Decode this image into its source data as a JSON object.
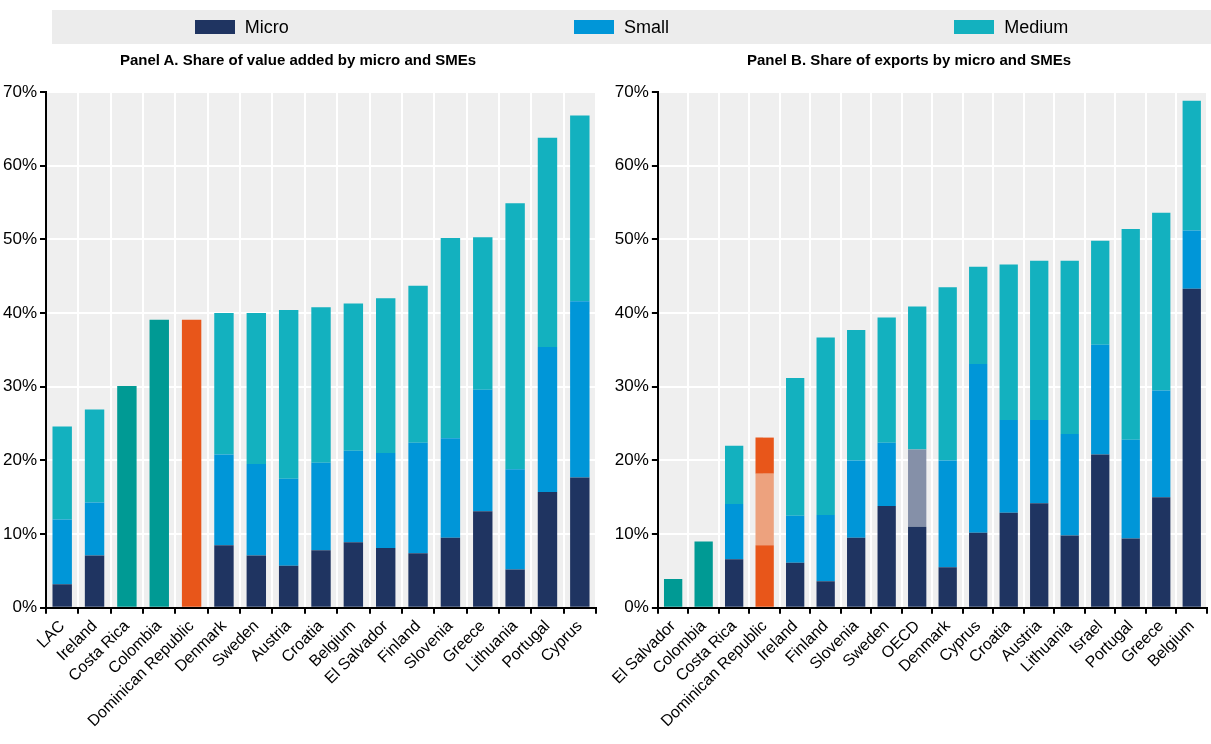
{
  "chart_data": [
    {
      "type": "bar",
      "title": "Panel A. Share of value added by micro and SMEs",
      "stacked": true,
      "grid": true,
      "legend": "top",
      "categories": [
        "LAC",
        "Ireland",
        "Costa Rica",
        "Colombia",
        "Dominican Republic",
        "Denmark",
        "Sweden",
        "Austria",
        "Croatia",
        "Belgium",
        "El Salvador",
        "Finland",
        "Slovenia",
        "Greece",
        "Lithuania",
        "Portugal",
        "Cyprus"
      ],
      "ylim": [
        0,
        70
      ],
      "yticks": [
        {
          "value": 0,
          "label": "0%"
        },
        {
          "value": 10,
          "label": "10%"
        },
        {
          "value": 20,
          "label": "20%"
        },
        {
          "value": 30,
          "label": "30%"
        },
        {
          "value": 40,
          "label": "40%"
        },
        {
          "value": 50,
          "label": "50%"
        },
        {
          "value": 60,
          "label": "60%"
        },
        {
          "value": 70,
          "label": "70%"
        }
      ],
      "series": [
        {
          "name": "Micro",
          "color": "#1f3461",
          "colors": [
            "#1f3461",
            "#1f3461",
            "#1f3461",
            "#1f3461",
            "#1f3461",
            "#1f3461",
            "#1f3461",
            "#1f3461",
            "#1f3461",
            "#1f3461",
            "#1f3461",
            "#1f3461",
            "#1f3461",
            "#1f3461",
            "#1f3461",
            "#1f3461",
            "#1f3461"
          ],
          "values": [
            3.2,
            7.1,
            null,
            null,
            null,
            8.5,
            7.1,
            5.7,
            7.8,
            8.9,
            8.1,
            7.4,
            9.5,
            13.1,
            5.2,
            15.7,
            17.7
          ]
        },
        {
          "name": "Small",
          "color": "#0096d8",
          "colors": [
            "#0096d8",
            "#0096d8",
            "#0096d8",
            "#0096d8",
            "#0096d8",
            "#0096d8",
            "#0096d8",
            "#0096d8",
            "#0096d8",
            "#0096d8",
            "#0096d8",
            "#0096d8",
            "#0096d8",
            "#0096d8",
            "#0096d8",
            "#0096d8",
            "#0096d8"
          ],
          "values": [
            8.8,
            7.2,
            null,
            null,
            null,
            12.3,
            12.4,
            11.8,
            11.9,
            12.4,
            12.9,
            15.0,
            13.5,
            16.5,
            13.6,
            19.7,
            23.9
          ]
        },
        {
          "name": "Medium",
          "color": "#13b1bf",
          "colors": [
            "#13b1bf",
            "#13b1bf",
            "#009a94",
            "#009a94",
            "#e8561a",
            "#13b1bf",
            "#13b1bf",
            "#13b1bf",
            "#13b1bf",
            "#13b1bf",
            "#13b1bf",
            "#13b1bf",
            "#13b1bf",
            "#13b1bf",
            "#13b1bf",
            "#13b1bf",
            "#13b1bf"
          ],
          "values": [
            12.6,
            12.6,
            30.1,
            39.1,
            39.1,
            19.2,
            20.5,
            22.9,
            21.1,
            20.0,
            21.0,
            21.3,
            27.2,
            20.7,
            36.1,
            28.4,
            25.2
          ]
        }
      ]
    },
    {
      "type": "bar",
      "title": "Panel B. Share of exports by micro and SMEs",
      "stacked": true,
      "grid": true,
      "categories": [
        "El Salvador",
        "Colombia",
        "Costa Rica",
        "Dominican Republic",
        "Ireland",
        "Finland",
        "Slovenia",
        "Sweden",
        "OECD",
        "Denmark",
        "Cyprus",
        "Croatia",
        "Austria",
        "Lithuania",
        "Israel",
        "Portugal",
        "Greece",
        "Belgium"
      ],
      "ylim": [
        0,
        70
      ],
      "yticks": [
        {
          "value": 0,
          "label": "0%"
        },
        {
          "value": 10,
          "label": "10%"
        },
        {
          "value": 20,
          "label": "20%"
        },
        {
          "value": 30,
          "label": "30%"
        },
        {
          "value": 40,
          "label": "40%"
        },
        {
          "value": 50,
          "label": "50%"
        },
        {
          "value": 60,
          "label": "60%"
        },
        {
          "value": 70,
          "label": "70%"
        }
      ],
      "series": [
        {
          "colors": [
            "#1f3461",
            "#1f3461",
            "#1f3461",
            "#e8561a",
            "#1f3461",
            "#1f3461",
            "#1f3461",
            "#1f3461",
            "#1f3461",
            "#1f3461",
            "#1f3461",
            "#1f3461",
            "#1f3461",
            "#1f3461",
            "#1f3461",
            "#1f3461",
            "#1f3461",
            "#1f3461"
          ],
          "values": [
            null,
            null,
            6.6,
            8.5,
            6.1,
            3.6,
            9.5,
            13.8,
            11.0,
            5.5,
            10.2,
            12.9,
            14.2,
            9.8,
            20.8,
            9.4,
            15.0,
            43.3
          ]
        },
        {
          "colors": [
            "#0096d8",
            "#0096d8",
            "#0096d8",
            "#eda27e",
            "#0096d8",
            "#0096d8",
            "#0096d8",
            "#0096d8",
            "#8590a8",
            "#0096d8",
            "#0096d8",
            "#0096d8",
            "#0096d8",
            "#0096d8",
            "#0096d8",
            "#0096d8",
            "#0096d8",
            "#0096d8"
          ],
          "values": [
            null,
            null,
            7.5,
            9.7,
            6.4,
            9.0,
            10.5,
            8.6,
            10.5,
            14.5,
            22.9,
            12.6,
            11.3,
            13.8,
            14.9,
            13.4,
            14.5,
            7.9
          ]
        },
        {
          "colors": [
            "#009a94",
            "#009a94",
            "#13b1bf",
            "#e8561a",
            "#13b1bf",
            "#13b1bf",
            "#13b1bf",
            "#13b1bf",
            "#13b1bf",
            "#13b1bf",
            "#13b1bf",
            "#13b1bf",
            "#13b1bf",
            "#13b1bf",
            "#13b1bf",
            "#13b1bf",
            "#13b1bf",
            "#13b1bf"
          ],
          "values": [
            3.9,
            9.0,
            7.9,
            4.9,
            18.7,
            24.1,
            17.7,
            17.0,
            19.4,
            23.5,
            13.2,
            21.1,
            21.6,
            23.5,
            14.1,
            28.6,
            24.1,
            17.6
          ]
        }
      ]
    }
  ]
}
